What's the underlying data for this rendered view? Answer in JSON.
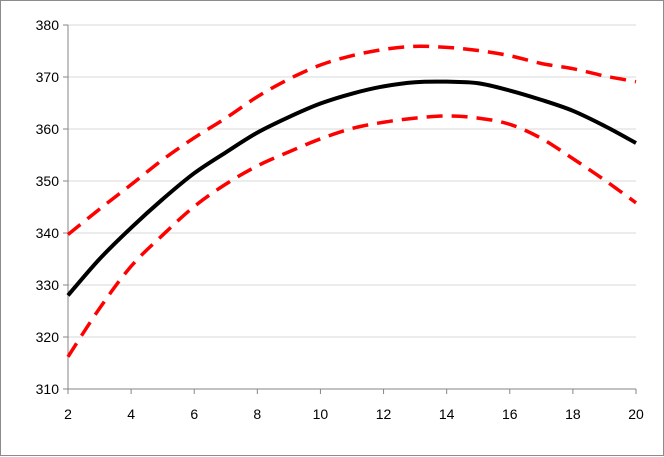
{
  "chart_data": {
    "type": "line",
    "title": "",
    "xlabel": "",
    "ylabel": "",
    "xlim": [
      2,
      20
    ],
    "ylim": [
      310,
      380
    ],
    "x_ticks": [
      2,
      4,
      6,
      8,
      10,
      12,
      14,
      16,
      18,
      20
    ],
    "y_ticks": [
      310,
      320,
      330,
      340,
      350,
      360,
      370,
      380
    ],
    "grid": {
      "horizontal": true,
      "vertical": false,
      "color": "#d9d9d9"
    },
    "legend": "none",
    "x": [
      2,
      3,
      4,
      5,
      6,
      7,
      8,
      9,
      10,
      11,
      12,
      13,
      14,
      15,
      16,
      17,
      18,
      19,
      20
    ],
    "series": [
      {
        "style": "solid",
        "color": "#000000",
        "values": [
          328,
          335,
          341,
          346.5,
          351.5,
          355.5,
          359.3,
          362.3,
          364.9,
          366.8,
          368.2,
          369,
          369.1,
          368.8,
          367.4,
          365.6,
          363.5,
          360.6,
          357.3
        ]
      },
      {
        "style": "dashed",
        "color": "#ff0000",
        "values": [
          339.7,
          344.6,
          349.3,
          354.1,
          358.3,
          362.1,
          366.2,
          369.6,
          372.3,
          374.1,
          375.3,
          375.9,
          375.7,
          375.1,
          374.1,
          372.6,
          371.6,
          370.2,
          369.1
        ]
      },
      {
        "style": "dashed",
        "color": "#ff0000",
        "values": [
          316.2,
          325.5,
          333.6,
          339.6,
          345.1,
          349.4,
          352.9,
          355.6,
          358.1,
          360.1,
          361.3,
          362.1,
          362.5,
          362.1,
          360.9,
          358.2,
          354.3,
          350.2,
          345.8
        ]
      }
    ]
  }
}
